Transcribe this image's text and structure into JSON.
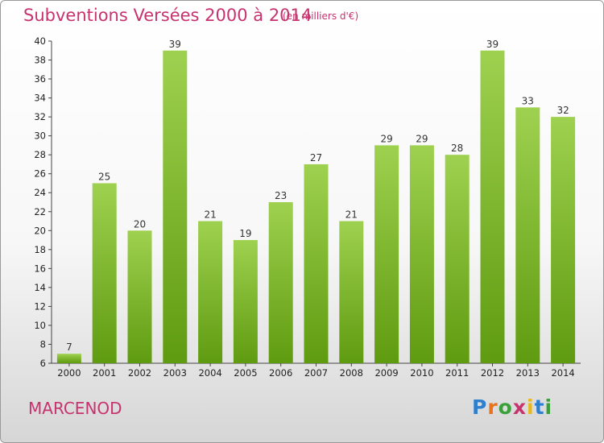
{
  "chart_data": {
    "type": "bar",
    "title": "Subventions Versées 2000 à 2014",
    "subtitle": "(en milliers d'€)",
    "categories": [
      "2000",
      "2001",
      "2002",
      "2003",
      "2004",
      "2005",
      "2006",
      "2007",
      "2008",
      "2009",
      "2010",
      "2011",
      "2012",
      "2013",
      "2014"
    ],
    "values": [
      7,
      25,
      20,
      39,
      21,
      19,
      23,
      27,
      21,
      29,
      29,
      28,
      39,
      33,
      32
    ],
    "ylim": [
      6,
      40
    ],
    "yticks": [
      6,
      8,
      10,
      12,
      14,
      16,
      18,
      20,
      22,
      24,
      26,
      28,
      30,
      32,
      34,
      36,
      38,
      40
    ],
    "grid": false,
    "colors": {
      "bar_light": "#9ed14f",
      "bar_dark": "#5f9b10",
      "accent": "#c7336e"
    }
  },
  "location": "MARCENOD",
  "logo": {
    "letters": [
      "P",
      "r",
      "o",
      "x",
      "i",
      "t",
      "i"
    ],
    "colors": [
      "#2f7fcf",
      "#e8731c",
      "#3aa03a",
      "#c7336e",
      "#e8b81c",
      "#2f7fcf",
      "#3aa03a"
    ]
  }
}
